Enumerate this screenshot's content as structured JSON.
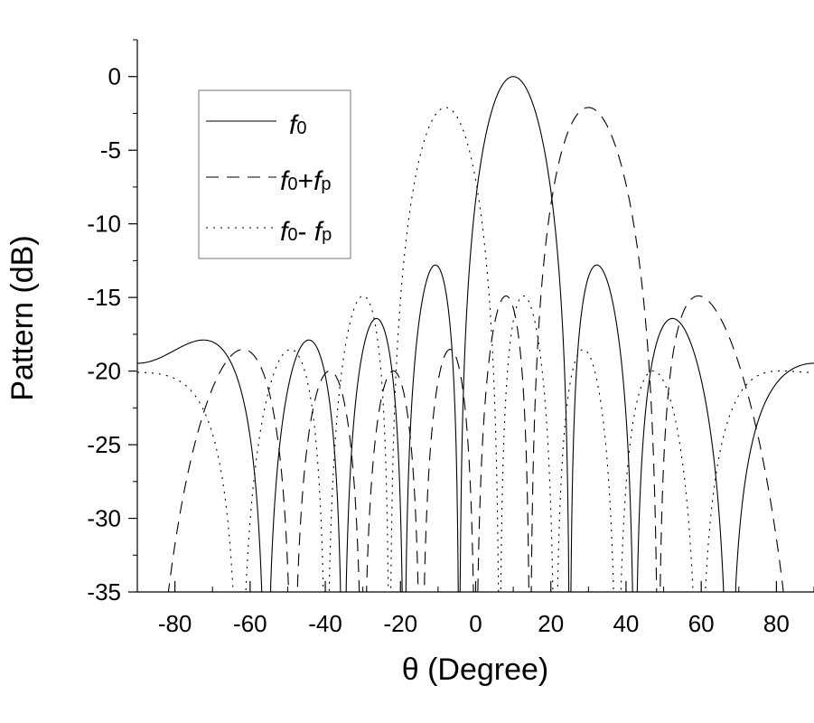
{
  "chart_data": {
    "type": "line",
    "xlabel": "θ (Degree)",
    "ylabel": "Pattern (dB)",
    "xlim": [
      -90,
      90
    ],
    "ylim": [
      -35,
      2.5
    ],
    "x_ticks": [
      -80,
      -60,
      -40,
      -20,
      0,
      20,
      40,
      60,
      80
    ],
    "x_tick_labels": [
      "-80",
      "-60",
      "-40",
      "-20",
      "0",
      "20",
      "40",
      "60",
      "80"
    ],
    "y_ticks": [
      0,
      -5,
      -10,
      -15,
      -20,
      -25,
      -30,
      -35
    ],
    "y_tick_labels": [
      "0",
      "-5",
      "-10",
      "-15",
      "-20",
      "-25",
      "-30",
      "-35"
    ],
    "grid": false,
    "legend_position": "top-left",
    "series": [
      {
        "legend": {
          "base": "f",
          "sub1": "0",
          "op": "",
          "base2": "",
          "sub2": ""
        },
        "style": "solid",
        "description": "array factor at carrier frequency, main beam steered to 10 degrees",
        "steer_deg": 10,
        "peak_db": 0
      },
      {
        "legend": {
          "base": "f",
          "sub1": "0",
          "op": "+",
          "base2": "f",
          "sub2": "p"
        },
        "style": "dashed",
        "description": "upper sideband, main beam at about 30 degrees",
        "steer_deg": 30,
        "peak_db": -2.1
      },
      {
        "legend": {
          "base": "f",
          "sub1": "0",
          "op": "- ",
          "base2": "f",
          "sub2": "p"
        },
        "style": "dotted",
        "description": "lower sideband, main beam at about -8 degrees",
        "steer_deg": -8,
        "peak_db": -2.1
      }
    ]
  }
}
